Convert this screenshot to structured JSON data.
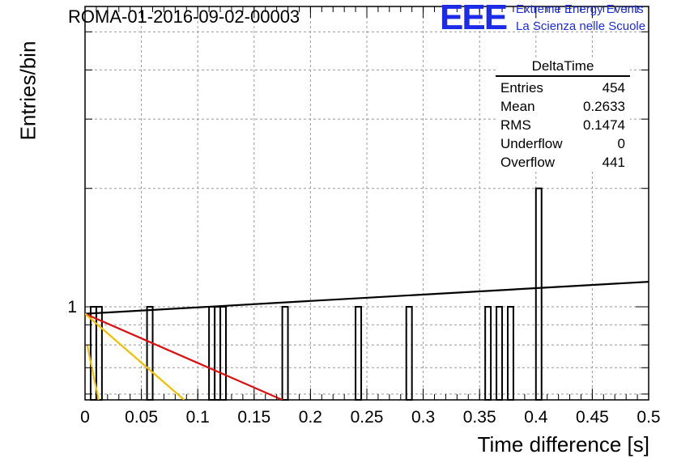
{
  "header": {
    "title": "ROMA-01-2016-09-02-00003",
    "logo_mark": "EEE",
    "logo_line1": "Extreme Energy Events",
    "logo_line2": "La Scienza nelle Scuole"
  },
  "stats": {
    "title": "DeltaTime",
    "rows": [
      {
        "label": "Entries",
        "value": "454"
      },
      {
        "label": "Mean",
        "value": "0.2633"
      },
      {
        "label": "RMS",
        "value": "0.1474"
      },
      {
        "label": "Underflow",
        "value": "0"
      },
      {
        "label": "Overflow",
        "value": "441"
      }
    ]
  },
  "chart_data": {
    "type": "histogram",
    "xlabel": "Time difference [s]",
    "ylabel": "Entries/bin",
    "xlim": [
      0,
      0.5
    ],
    "y_scale": "log",
    "ylim": [
      0.58,
      5.8
    ],
    "x_ticks": [
      "0",
      "0.05",
      "0.1",
      "0.15",
      "0.2",
      "0.25",
      "0.3",
      "0.35",
      "0.4",
      "0.45",
      "0.5"
    ],
    "y_tick_labels": [
      "1"
    ],
    "grid": true,
    "bin_width": 0.005,
    "bins": [
      {
        "x": 0.0075,
        "count": 1
      },
      {
        "x": 0.0125,
        "count": 1
      },
      {
        "x": 0.0575,
        "count": 1
      },
      {
        "x": 0.1125,
        "count": 1
      },
      {
        "x": 0.1175,
        "count": 1
      },
      {
        "x": 0.1225,
        "count": 1
      },
      {
        "x": 0.1775,
        "count": 1
      },
      {
        "x": 0.2425,
        "count": 1
      },
      {
        "x": 0.2875,
        "count": 1
      },
      {
        "x": 0.3575,
        "count": 1
      },
      {
        "x": 0.3675,
        "count": 1
      },
      {
        "x": 0.3775,
        "count": 1
      },
      {
        "x": 0.4025,
        "count": 2
      }
    ],
    "fits": [
      {
        "color": "#000000",
        "points": [
          [
            0.0,
            0.96
          ],
          [
            0.505,
            1.16
          ]
        ]
      },
      {
        "color": "#dd1111",
        "points": [
          [
            0.0,
            0.96
          ],
          [
            0.175,
            0.58
          ]
        ]
      },
      {
        "color": "#f0c000",
        "points": [
          [
            0.0,
            0.96
          ],
          [
            0.088,
            0.58
          ]
        ]
      },
      {
        "color": "#f0c000",
        "points": [
          [
            0.002,
            0.8
          ],
          [
            0.006,
            0.7
          ],
          [
            0.01,
            0.62
          ],
          [
            0.012,
            0.58
          ]
        ]
      }
    ],
    "colors": {
      "bars": "#000000",
      "grid": "#999999",
      "axes": "#000000"
    }
  }
}
